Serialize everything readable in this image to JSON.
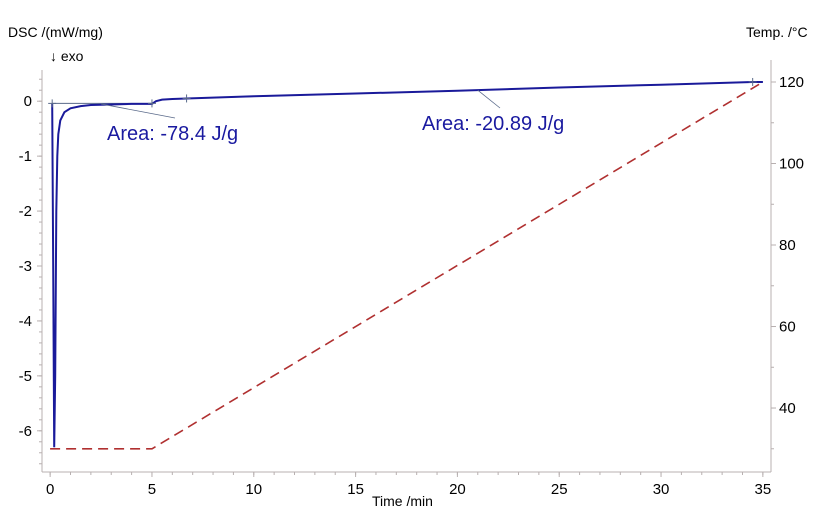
{
  "chart_data": {
    "type": "line",
    "title": "",
    "xlabel": "Time /min",
    "ylabel_left": "DSC /(mW/mg)",
    "ylabel_left_note": "↓ exo",
    "ylabel_right": "Temp. /°C",
    "xlim": [
      -0.4,
      35.4
    ],
    "ylim_left": [
      -6.75,
      0.75
    ],
    "ylim_right": [
      24.3,
      125.4
    ],
    "x_ticks": [
      "0",
      "5",
      "10",
      "15",
      "20",
      "25",
      "30",
      "35"
    ],
    "y_left_ticks": [
      "0",
      "-1",
      "-2",
      "-3",
      "-4",
      "-5",
      "-6"
    ],
    "y_right_ticks": [
      "120",
      "100",
      "80",
      "60",
      "40"
    ],
    "grid": false,
    "colors": {
      "dsc": "#1a1a9a",
      "temp": "#b03030",
      "baseline": "#5a6a8a"
    },
    "series": [
      {
        "axis": "left",
        "style": "solid",
        "x": [
          0.1,
          0.15,
          0.2,
          0.25,
          0.3,
          0.35,
          0.4,
          0.5,
          0.7,
          1.0,
          1.5,
          2.0,
          3.0,
          4.0,
          5.0,
          5.2,
          5.5,
          6.0,
          6.7,
          10,
          15,
          20,
          25,
          30,
          34.5,
          35
        ],
        "y": [
          -0.05,
          -3.0,
          -6.3,
          -5.0,
          -2.0,
          -1.0,
          -0.6,
          -0.35,
          -0.2,
          -0.13,
          -0.09,
          -0.07,
          -0.06,
          -0.05,
          -0.05,
          0.0,
          0.03,
          0.04,
          0.05,
          0.09,
          0.14,
          0.19,
          0.25,
          0.3,
          0.35,
          0.35
        ]
      },
      {
        "axis": "right",
        "style": "dashed",
        "x": [
          0,
          5,
          35
        ],
        "y": [
          30,
          30,
          120
        ]
      }
    ],
    "annotations": [
      {
        "text": "Area: -78.4 J/g",
        "range": [
          0.1,
          5.0
        ]
      },
      {
        "text": "Area: -20.89 J/g",
        "range": [
          6.7,
          34.5
        ]
      }
    ]
  }
}
